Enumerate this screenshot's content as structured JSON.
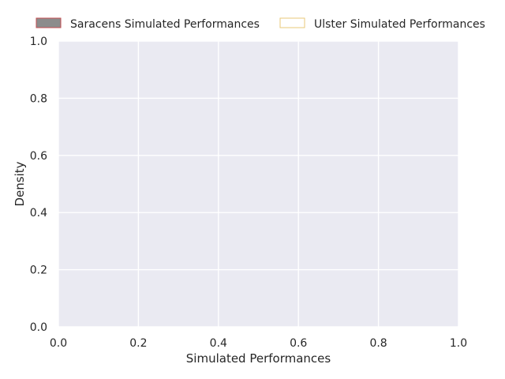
{
  "chart_data": {
    "type": "area",
    "title": "",
    "xlabel": "Simulated Performances",
    "ylabel": "Density",
    "xlim": [
      0.0,
      1.0
    ],
    "ylim": [
      0.0,
      1.0
    ],
    "x_ticks": [
      "0.0",
      "0.2",
      "0.4",
      "0.6",
      "0.8",
      "1.0"
    ],
    "y_ticks": [
      "0.0",
      "0.2",
      "0.4",
      "0.6",
      "0.8",
      "1.0"
    ],
    "grid": true,
    "legend_position": "top",
    "series": [
      {
        "name": "Saracens Simulated Performances",
        "fill": "#8c8c8c",
        "edge": "#c44e52",
        "values": []
      },
      {
        "name": "Ulster Simulated Performances",
        "fill": "#ffffff",
        "edge": "#e8c97a",
        "values": []
      }
    ],
    "background_color": "#eaeaf2",
    "grid_color": "#ffffff"
  }
}
